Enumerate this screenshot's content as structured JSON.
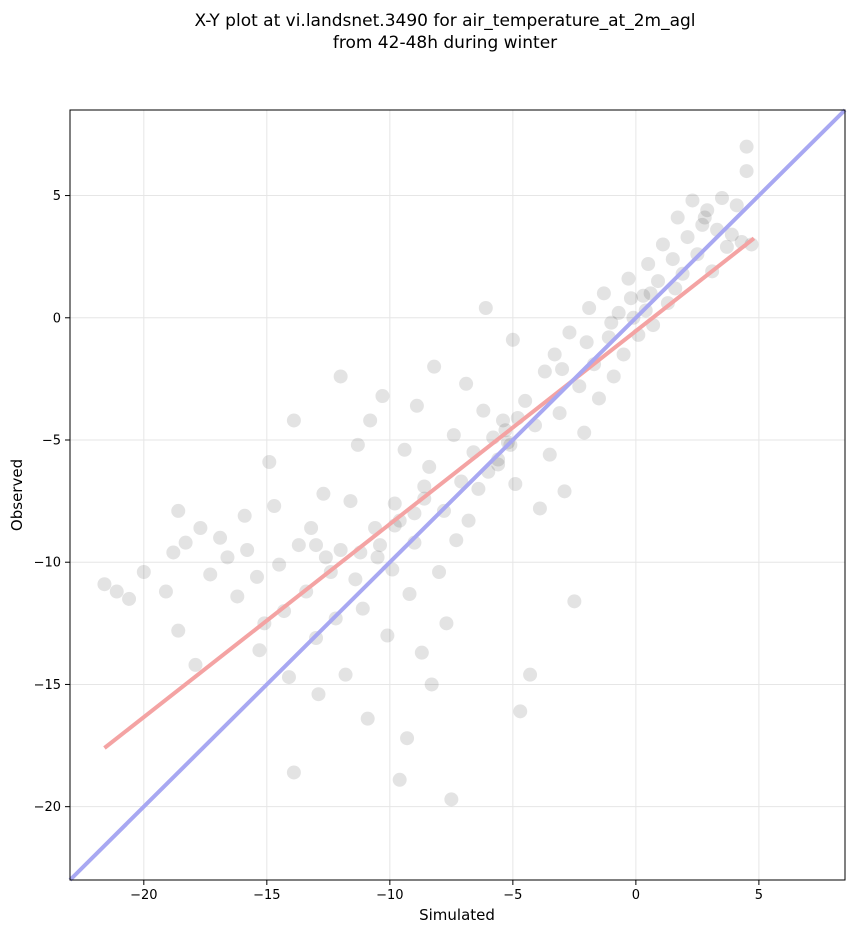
{
  "figure": {
    "title_line1": "X-Y plot at vi.landsnet.3490 for air_temperature_at_2m_agl",
    "title_line2": "from 42-48h during winter"
  },
  "chart_data": {
    "type": "scatter",
    "title": "X-Y plot at vi.landsnet.3490 for air_temperature_at_2m_agl\nfrom 42-48h during winter",
    "xlabel": "Simulated",
    "ylabel": "Observed",
    "xlim": [
      -23,
      8.5
    ],
    "ylim": [
      -23,
      8.5
    ],
    "xticks": [
      -20,
      -15,
      -10,
      -5,
      0,
      5
    ],
    "yticks": [
      -20,
      -15,
      -10,
      -5,
      0,
      5
    ],
    "xtick_labels": [
      "−20",
      "−15",
      "−10",
      "−5",
      "0",
      "5"
    ],
    "ytick_labels": [
      "−20",
      "−15",
      "−10",
      "−5",
      "0",
      "5"
    ],
    "grid": true,
    "colors": {
      "points": "#000000",
      "regression_line": "#f4a3a3",
      "identity_line": "#a8a8f2"
    },
    "lines": [
      {
        "kind": "regression",
        "x": [
          -21.6,
          4.8
        ],
        "y": [
          -17.6,
          3.25
        ]
      },
      {
        "kind": "identity",
        "x": [
          -23,
          8.5
        ],
        "y": [
          -23,
          8.5
        ]
      }
    ],
    "points_sample": [
      [
        -21.6,
        -10.9
      ],
      [
        -21.1,
        -11.2
      ],
      [
        -20.6,
        -11.5
      ],
      [
        -20.0,
        -10.4
      ],
      [
        -19.1,
        -11.2
      ],
      [
        -18.8,
        -9.6
      ],
      [
        -18.6,
        -7.9
      ],
      [
        -18.6,
        -12.8
      ],
      [
        -18.3,
        -9.2
      ],
      [
        -17.9,
        -14.2
      ],
      [
        -17.7,
        -8.6
      ],
      [
        -17.3,
        -10.5
      ],
      [
        -16.9,
        -9.0
      ],
      [
        -16.6,
        -9.8
      ],
      [
        -16.2,
        -11.4
      ],
      [
        -15.9,
        -8.1
      ],
      [
        -15.8,
        -9.5
      ],
      [
        -15.4,
        -10.6
      ],
      [
        -15.3,
        -13.6
      ],
      [
        -15.1,
        -12.5
      ],
      [
        -14.9,
        -5.9
      ],
      [
        -14.7,
        -7.7
      ],
      [
        -14.5,
        -10.1
      ],
      [
        -14.3,
        -12.0
      ],
      [
        -14.1,
        -14.7
      ],
      [
        -13.9,
        -4.2
      ],
      [
        -13.9,
        -18.6
      ],
      [
        -13.7,
        -9.3
      ],
      [
        -13.4,
        -11.2
      ],
      [
        -13.2,
        -8.6
      ],
      [
        -13.0,
        -13.1
      ],
      [
        -12.9,
        -15.4
      ],
      [
        -12.7,
        -7.2
      ],
      [
        -12.4,
        -10.4
      ],
      [
        -12.2,
        -12.3
      ],
      [
        -12.0,
        -9.5
      ],
      [
        -12.0,
        -2.4
      ],
      [
        -11.8,
        -14.6
      ],
      [
        -11.6,
        -7.5
      ],
      [
        -11.4,
        -10.7
      ],
      [
        -11.3,
        -5.2
      ],
      [
        -11.1,
        -11.9
      ],
      [
        -10.9,
        -16.4
      ],
      [
        -10.8,
        -4.2
      ],
      [
        -10.6,
        -8.6
      ],
      [
        -10.5,
        -9.8
      ],
      [
        -10.3,
        -3.2
      ],
      [
        -10.1,
        -13.0
      ],
      [
        -9.9,
        -10.3
      ],
      [
        -9.8,
        -7.6
      ],
      [
        -9.6,
        -8.3
      ],
      [
        -9.6,
        -18.9
      ],
      [
        -9.4,
        -5.4
      ],
      [
        -9.3,
        -17.2
      ],
      [
        -9.2,
        -11.3
      ],
      [
        -9.0,
        -9.2
      ],
      [
        -8.9,
        -3.6
      ],
      [
        -8.7,
        -13.7
      ],
      [
        -8.6,
        -7.4
      ],
      [
        -8.4,
        -6.1
      ],
      [
        -8.3,
        -15.0
      ],
      [
        -8.2,
        -2.0
      ],
      [
        -8.0,
        -10.4
      ],
      [
        -7.8,
        -7.9
      ],
      [
        -7.7,
        -12.5
      ],
      [
        -7.5,
        -19.7
      ],
      [
        -7.4,
        -4.8
      ],
      [
        -7.3,
        -9.1
      ],
      [
        -7.1,
        -6.7
      ],
      [
        -6.9,
        -2.7
      ],
      [
        -6.8,
        -8.3
      ],
      [
        -6.6,
        -5.5
      ],
      [
        -6.4,
        -7.0
      ],
      [
        -6.2,
        -3.8
      ],
      [
        -6.0,
        -6.3
      ],
      [
        -5.8,
        -4.9
      ],
      [
        -5.6,
        -5.8
      ],
      [
        -5.4,
        -4.2
      ],
      [
        -5.2,
        -5.1
      ],
      [
        -5.0,
        -0.9
      ],
      [
        -4.9,
        -6.8
      ],
      [
        -4.7,
        -16.1
      ],
      [
        -4.5,
        -3.4
      ],
      [
        -4.3,
        -14.6
      ],
      [
        -4.1,
        -4.4
      ],
      [
        -3.9,
        -7.8
      ],
      [
        -3.7,
        -2.2
      ],
      [
        -3.5,
        -5.6
      ],
      [
        -3.3,
        -1.5
      ],
      [
        -3.1,
        -3.9
      ],
      [
        -2.9,
        -7.1
      ],
      [
        -2.7,
        -0.6
      ],
      [
        -2.5,
        -11.6
      ],
      [
        -2.3,
        -2.8
      ],
      [
        -2.1,
        -4.7
      ],
      [
        -1.9,
        0.4
      ],
      [
        -1.7,
        -1.9
      ],
      [
        -1.5,
        -3.3
      ],
      [
        -1.3,
        1.0
      ],
      [
        -1.1,
        -0.8
      ],
      [
        -0.9,
        -2.4
      ],
      [
        -0.7,
        0.2
      ],
      [
        -0.5,
        -1.5
      ],
      [
        -0.3,
        1.6
      ],
      [
        -0.1,
        0.0
      ],
      [
        0.1,
        -0.7
      ],
      [
        0.3,
        0.9
      ],
      [
        0.5,
        2.2
      ],
      [
        0.7,
        -0.3
      ],
      [
        0.9,
        1.5
      ],
      [
        1.1,
        3.0
      ],
      [
        1.3,
        0.6
      ],
      [
        1.5,
        2.4
      ],
      [
        1.7,
        4.1
      ],
      [
        1.9,
        1.8
      ],
      [
        2.1,
        3.3
      ],
      [
        2.3,
        4.8
      ],
      [
        2.5,
        2.6
      ],
      [
        2.7,
        3.8
      ],
      [
        2.9,
        4.4
      ],
      [
        3.1,
        1.9
      ],
      [
        3.3,
        3.6
      ],
      [
        3.5,
        4.9
      ],
      [
        3.7,
        2.9
      ],
      [
        3.9,
        3.4
      ],
      [
        4.1,
        4.6
      ],
      [
        4.3,
        3.1
      ],
      [
        4.5,
        6.0
      ],
      [
        4.5,
        7.0
      ],
      [
        4.7,
        3.0
      ],
      [
        -6.1,
        0.4
      ],
      [
        -5.3,
        -4.6
      ],
      [
        -4.8,
        -4.1
      ],
      [
        -2.0,
        -1.0
      ],
      [
        0.4,
        0.3
      ],
      [
        1.6,
        1.2
      ],
      [
        -8.6,
        -6.9
      ],
      [
        -9.0,
        -8.0
      ],
      [
        -9.8,
        -8.5
      ],
      [
        -10.4,
        -9.3
      ],
      [
        -12.6,
        -9.8
      ],
      [
        -11.2,
        -9.6
      ],
      [
        -13.0,
        -9.3
      ],
      [
        -5.6,
        -6.0
      ],
      [
        -5.1,
        -5.2
      ],
      [
        -3.0,
        -2.1
      ],
      [
        -0.2,
        0.8
      ],
      [
        2.8,
        4.1
      ],
      [
        0.6,
        1.0
      ],
      [
        -1.0,
        -0.2
      ]
    ]
  }
}
